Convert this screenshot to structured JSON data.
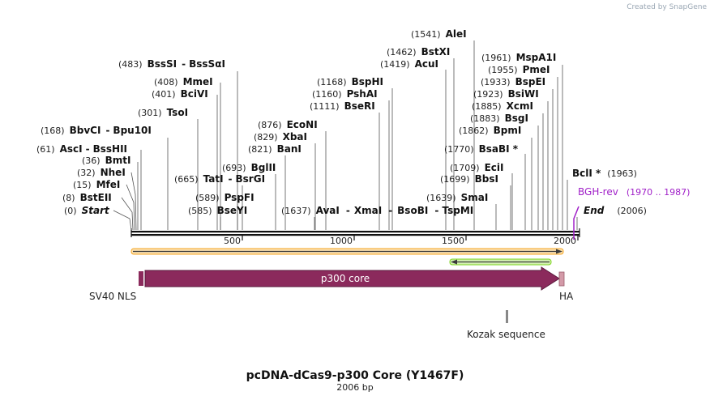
{
  "watermark": "Created by SnapGene",
  "map": {
    "title": "pcDNA-dCas9-p300 Core (Y1467F)",
    "length_label": "2006 bp",
    "length": 2006,
    "ticks": [
      500,
      1000,
      1500,
      2000
    ]
  },
  "sites": [
    {
      "pos": "(0)",
      "names": [
        "Start"
      ],
      "italic": true
    },
    {
      "pos": "(8)",
      "names": [
        "BstEII"
      ]
    },
    {
      "pos": "(15)",
      "names": [
        "MfeI"
      ]
    },
    {
      "pos": "(32)",
      "names": [
        "NheI"
      ]
    },
    {
      "pos": "(36)",
      "names": [
        "BmtI"
      ]
    },
    {
      "pos": "(61)",
      "names": [
        "AscI",
        "BssHII"
      ]
    },
    {
      "pos": "(168)",
      "names": [
        "BbvCI",
        "Bpu10I"
      ]
    },
    {
      "pos": "(301)",
      "names": [
        "TsoI"
      ]
    },
    {
      "pos": "(401)",
      "names": [
        "BciVI"
      ]
    },
    {
      "pos": "(408)",
      "names": [
        "MmeI"
      ]
    },
    {
      "pos": "(483)",
      "names": [
        "BssSI",
        "BssSαI"
      ]
    },
    {
      "pos": "(585)",
      "names": [
        "BseYI"
      ]
    },
    {
      "pos": "(589)",
      "names": [
        "PspFI"
      ]
    },
    {
      "pos": "(665)",
      "names": [
        "TatI",
        "BsrGI"
      ]
    },
    {
      "pos": "(693)",
      "names": [
        "BglII"
      ]
    },
    {
      "pos": "(821)",
      "names": [
        "BanI"
      ]
    },
    {
      "pos": "(829)",
      "names": [
        "XbaI"
      ]
    },
    {
      "pos": "(876)",
      "names": [
        "EcoNI"
      ]
    },
    {
      "pos": "(1637)",
      "names": [
        "AvaI",
        "XmaI",
        "BsoBI",
        "TspMI"
      ]
    },
    {
      "pos": "(1111)",
      "names": [
        "BseRI"
      ]
    },
    {
      "pos": "(1160)",
      "names": [
        "PshAI"
      ]
    },
    {
      "pos": "(1168)",
      "names": [
        "BspHI"
      ]
    },
    {
      "pos": "(1419)",
      "names": [
        "AcuI"
      ]
    },
    {
      "pos": "(1462)",
      "names": [
        "BstXI"
      ]
    },
    {
      "pos": "(1541)",
      "names": [
        "AleI"
      ]
    },
    {
      "pos": "(1639)",
      "names": [
        "SmaI"
      ]
    },
    {
      "pos": "(1699)",
      "names": [
        "BbsI"
      ]
    },
    {
      "pos": "(1709)",
      "names": [
        "EciI"
      ]
    },
    {
      "pos": "(1770)",
      "names": [
        "BsaBI *"
      ]
    },
    {
      "pos": "(1862)",
      "names": [
        "BpmI"
      ]
    },
    {
      "pos": "(1883)",
      "names": [
        "BsgI"
      ]
    },
    {
      "pos": "(1885)",
      "names": [
        "XcmI"
      ]
    },
    {
      "pos": "(1923)",
      "names": [
        "BsiWI"
      ]
    },
    {
      "pos": "(1933)",
      "names": [
        "BspEI"
      ]
    },
    {
      "pos": "(1955)",
      "names": [
        "PmeI"
      ]
    },
    {
      "pos": "(1961)",
      "names": [
        "MspA1I"
      ]
    },
    {
      "pos": "(1963)",
      "names": [
        "BclI *"
      ]
    },
    {
      "pos": "(2006)",
      "names": [
        "End"
      ],
      "italic": true
    }
  ],
  "primer": {
    "name": "BGH-rev",
    "range": "(1970 .. 1987)"
  },
  "features": {
    "sv40": "SV40 NLS",
    "p300": "p300 core",
    "ha": "HA",
    "kozak": "Kozak sequence"
  },
  "colors": {
    "p300": "#8b2a5c",
    "ha": "#d39aa8",
    "orf_orange": "#f5a623",
    "orf_green": "#7ed321",
    "primer": "#a020c8"
  }
}
